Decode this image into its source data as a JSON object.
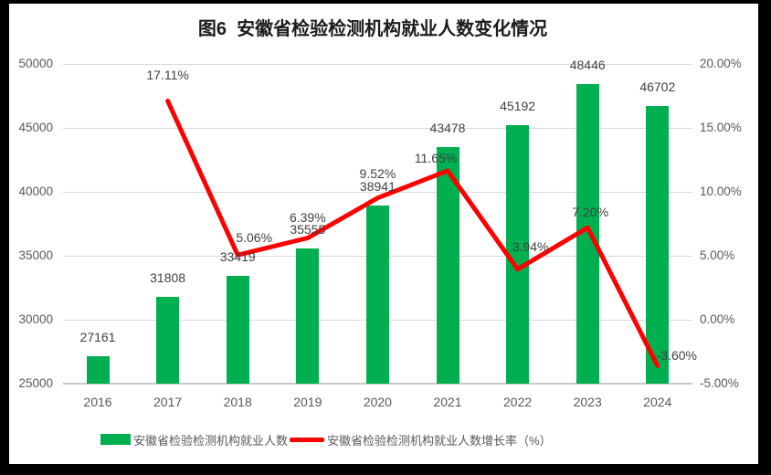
{
  "frame_title": "图6  安徽省检验检测机构就业人数变化情况",
  "chart_data": {
    "type": "bar+line",
    "title": "图6  安徽省检验检测机构就业人数变化情况",
    "categories": [
      "2016",
      "2017",
      "2018",
      "2019",
      "2020",
      "2021",
      "2022",
      "2023",
      "2024"
    ],
    "series": [
      {
        "name": "安徽省检验检测机构就业人数",
        "type": "bar",
        "axis": "left",
        "values": [
          27161,
          31808,
          33419,
          35555,
          38941,
          43478,
          45192,
          48446,
          46702
        ],
        "labels": [
          "27161",
          "31808",
          "33419",
          "35555",
          "38941",
          "43478",
          "45192",
          "48446",
          "46702"
        ]
      },
      {
        "name": "安徽省检验检测机构就业人数增长率（%）",
        "type": "line",
        "axis": "right",
        "values": [
          null,
          17.11,
          5.06,
          6.39,
          9.52,
          11.65,
          3.94,
          7.2,
          -3.6
        ],
        "labels": [
          null,
          "17.11%",
          "5.06%",
          "6.39%",
          "9.52%",
          "11.65%",
          "3.94%",
          "7.20%",
          "-3.60%"
        ]
      }
    ],
    "left_axis": {
      "min": 25000,
      "max": 50000,
      "step": 5000,
      "tick_labels": [
        "25000",
        "30000",
        "35000",
        "40000",
        "45000",
        "50000"
      ]
    },
    "right_axis": {
      "min": -5,
      "max": 20,
      "step": 5,
      "tick_labels": [
        "-5.00%",
        "0.00%",
        "5.00%",
        "10.00%",
        "15.00%",
        "20.00%"
      ]
    },
    "grid": "horizontal",
    "legend_position": "bottom"
  },
  "colors": {
    "bar": "#00B050",
    "line": "#FF0000",
    "axis_text": "#595959",
    "data_label": "#404040",
    "gridline": "#D9D9D9",
    "axis_line": "#C8C8C8",
    "background": "#FFFFFF",
    "frame": "#000000"
  }
}
